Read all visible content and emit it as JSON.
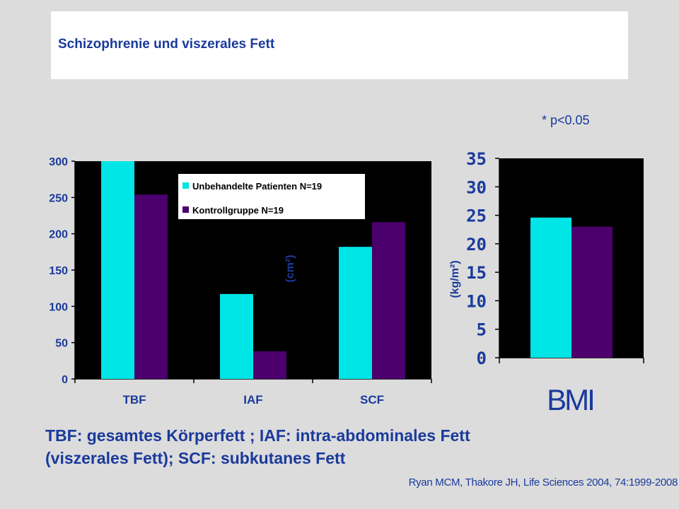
{
  "slide": {
    "title": "Schizophrenie und viszerales Fett",
    "significance": "* p<0.05",
    "caption_line1": "TBF: gesamtes Körperfett ; IAF: intra-abdominales Fett",
    "caption_line2": "(viszerales Fett); SCF: subkutanes Fett",
    "citation": "Ryan MCM, Thakore JH, Life Sciences 2004, 74:1999-2008"
  },
  "colors": {
    "series1": "#00e5e5",
    "series2": "#4b006e",
    "plot_bg": "#000000",
    "text": "#1a3a9c"
  },
  "chart_data": [
    {
      "type": "bar",
      "ylabel": "(cm²)",
      "ylim": [
        0,
        300
      ],
      "yticks": [
        0,
        50,
        100,
        150,
        200,
        250,
        300
      ],
      "categories": [
        "TBF",
        "IAF",
        "SCF"
      ],
      "series": [
        {
          "name": "Unbehandelte Patienten N=19",
          "values": [
            300,
            117,
            182
          ]
        },
        {
          "name": "Kontrollgruppe N=19",
          "values": [
            254,
            38,
            216
          ]
        }
      ],
      "legend": "top-center",
      "grid": false
    },
    {
      "type": "bar",
      "ylabel": "(kg/m²)",
      "xlabel": "BMI",
      "ylim": [
        0,
        35
      ],
      "yticks": [
        0,
        5,
        10,
        15,
        20,
        25,
        30,
        35
      ],
      "categories": [
        ""
      ],
      "series": [
        {
          "values": [
            24.6
          ]
        },
        {
          "values": [
            23.0
          ]
        }
      ],
      "grid": false
    }
  ]
}
